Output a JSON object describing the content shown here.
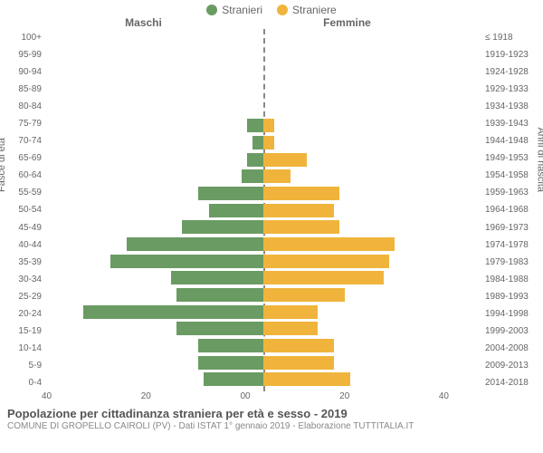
{
  "chart": {
    "type": "population-pyramid",
    "legend": {
      "male": {
        "label": "Stranieri",
        "color": "#6a9b63"
      },
      "female": {
        "label": "Straniere",
        "color": "#f0b43c"
      }
    },
    "headers": {
      "left": "Maschi",
      "right": "Femmine"
    },
    "axis_titles": {
      "left": "Fasce di età",
      "right": "Anni di nascita"
    },
    "xmax": 40,
    "xticks_left": [
      40,
      20,
      0
    ],
    "xticks_right": [
      0,
      20,
      40
    ],
    "background_color": "#ffffff",
    "centerline_color": "#888888",
    "rows": [
      {
        "age": "100+",
        "birth": "≤ 1918",
        "m": 0,
        "f": 0
      },
      {
        "age": "95-99",
        "birth": "1919-1923",
        "m": 0,
        "f": 0
      },
      {
        "age": "90-94",
        "birth": "1924-1928",
        "m": 0,
        "f": 0
      },
      {
        "age": "85-89",
        "birth": "1929-1933",
        "m": 0,
        "f": 0
      },
      {
        "age": "80-84",
        "birth": "1934-1938",
        "m": 0,
        "f": 0
      },
      {
        "age": "75-79",
        "birth": "1939-1943",
        "m": 3,
        "f": 2
      },
      {
        "age": "70-74",
        "birth": "1944-1948",
        "m": 2,
        "f": 2
      },
      {
        "age": "65-69",
        "birth": "1949-1953",
        "m": 3,
        "f": 8
      },
      {
        "age": "60-64",
        "birth": "1954-1958",
        "m": 4,
        "f": 5
      },
      {
        "age": "55-59",
        "birth": "1959-1963",
        "m": 12,
        "f": 14
      },
      {
        "age": "50-54",
        "birth": "1964-1968",
        "m": 10,
        "f": 13
      },
      {
        "age": "45-49",
        "birth": "1969-1973",
        "m": 15,
        "f": 14
      },
      {
        "age": "40-44",
        "birth": "1974-1978",
        "m": 25,
        "f": 24
      },
      {
        "age": "35-39",
        "birth": "1979-1983",
        "m": 28,
        "f": 23
      },
      {
        "age": "30-34",
        "birth": "1984-1988",
        "m": 17,
        "f": 22
      },
      {
        "age": "25-29",
        "birth": "1989-1993",
        "m": 16,
        "f": 15
      },
      {
        "age": "20-24",
        "birth": "1994-1998",
        "m": 33,
        "f": 10
      },
      {
        "age": "15-19",
        "birth": "1999-2003",
        "m": 16,
        "f": 10
      },
      {
        "age": "10-14",
        "birth": "2004-2008",
        "m": 12,
        "f": 13
      },
      {
        "age": "5-9",
        "birth": "2009-2013",
        "m": 12,
        "f": 13
      },
      {
        "age": "0-4",
        "birth": "2014-2018",
        "m": 11,
        "f": 16
      }
    ]
  },
  "footer": {
    "title": "Popolazione per cittadinanza straniera per età e sesso - 2019",
    "subtitle": "COMUNE DI GROPELLO CAIROLI (PV) - Dati ISTAT 1° gennaio 2019 - Elaborazione TUTTITALIA.IT"
  }
}
